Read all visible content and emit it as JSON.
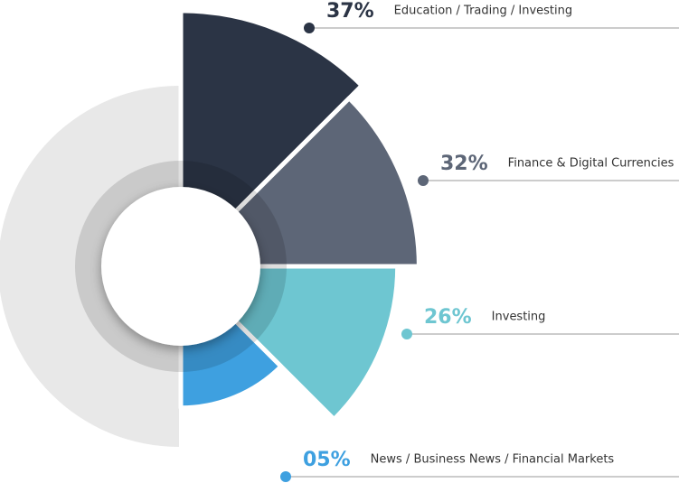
{
  "chart_data": {
    "type": "pie",
    "categories": [
      "Education / Trading / Investing",
      "Finance & Digital Currencies",
      "Investing",
      "News / Business News / Financial Markets"
    ],
    "values": [
      37,
      32,
      26,
      5
    ],
    "value_labels": [
      "37%",
      "32%",
      "26%",
      "05%"
    ],
    "colors": [
      "#2b3445",
      "#5d6677",
      "#6ec6d1",
      "#3ea0e0"
    ]
  }
}
